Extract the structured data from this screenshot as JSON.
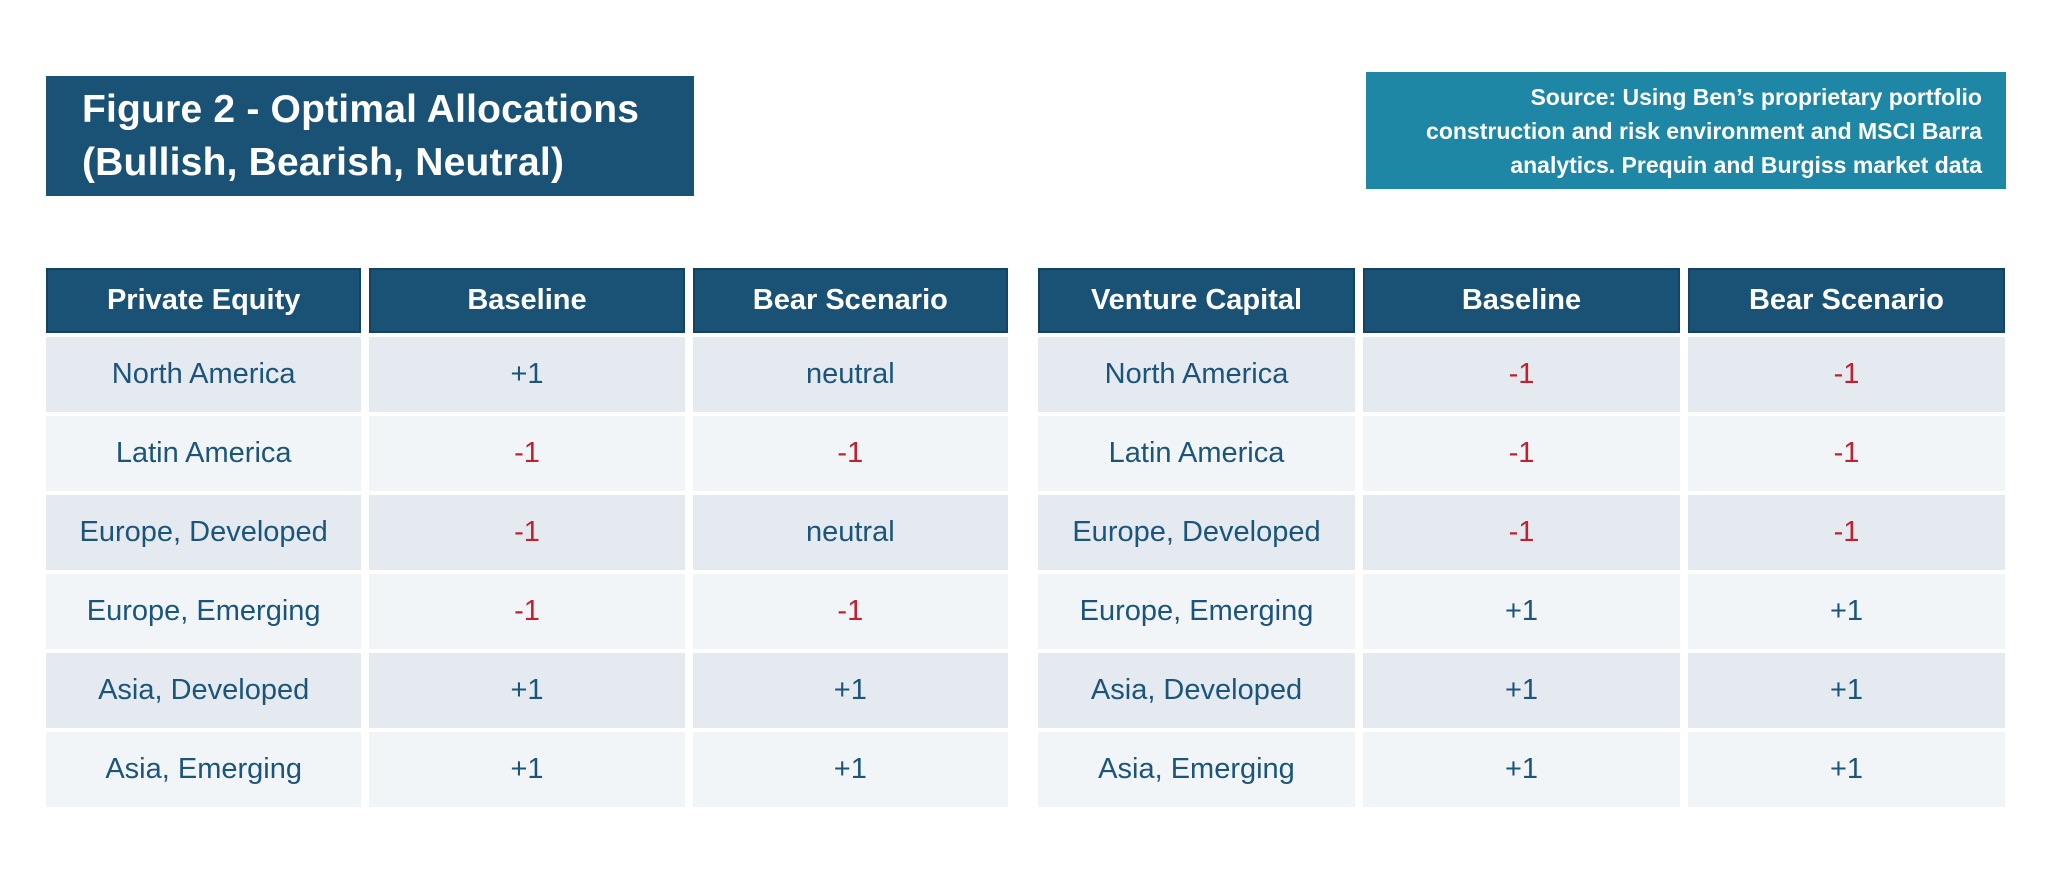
{
  "figure": {
    "title_line1": "Figure 2 - Optimal Allocations",
    "title_line2": "(Bullish, Bearish, Neutral)"
  },
  "source_box": {
    "text": "Source: Using Ben’s proprietary portfolio construction and risk environment and MSCI Barra analytics. Prequin and Burgiss market data"
  },
  "colors": {
    "page_bg": "#ffffff",
    "banner_bg": "#1a5276",
    "banner_text": "#ffffff",
    "source_bg": "#1f87a6",
    "source_text": "#ffffff",
    "header_bg": "#1a5276",
    "header_text": "#ffffff",
    "row_dark": "#e4eaef",
    "row_light": "#f1f5f8",
    "value_positive": "#1b557b",
    "value_negative": "#c2202f"
  },
  "chart_data": [
    {
      "type": "table",
      "title": "Private Equity optimal allocations",
      "headers": [
        "Private Equity",
        "Baseline",
        "Bear Scenario"
      ],
      "rows": [
        {
          "region": "North America",
          "baseline": "+1",
          "bear": "neutral"
        },
        {
          "region": "Latin America",
          "baseline": "-1",
          "bear": "-1"
        },
        {
          "region": "Europe, Developed",
          "baseline": "-1",
          "bear": "neutral"
        },
        {
          "region": "Europe, Emerging",
          "baseline": "-1",
          "bear": "-1"
        },
        {
          "region": "Asia, Developed",
          "baseline": "+1",
          "bear": "+1"
        },
        {
          "region": "Asia, Emerging",
          "baseline": "+1",
          "bear": "+1"
        }
      ]
    },
    {
      "type": "table",
      "title": "Venture Capital optimal allocations",
      "headers": [
        "Venture Capital",
        "Baseline",
        "Bear Scenario"
      ],
      "rows": [
        {
          "region": "North America",
          "baseline": "-1",
          "bear": "-1"
        },
        {
          "region": "Latin America",
          "baseline": "-1",
          "bear": "-1"
        },
        {
          "region": "Europe, Developed",
          "baseline": "-1",
          "bear": "-1"
        },
        {
          "region": "Europe, Emerging",
          "baseline": "+1",
          "bear": "+1"
        },
        {
          "region": "Asia, Developed",
          "baseline": "+1",
          "bear": "+1"
        },
        {
          "region": "Asia, Emerging",
          "baseline": "+1",
          "bear": "+1"
        }
      ]
    }
  ]
}
